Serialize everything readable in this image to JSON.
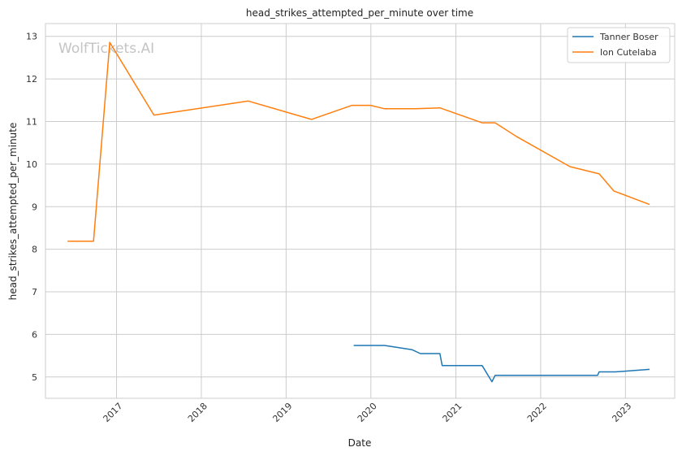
{
  "chart_data": {
    "type": "line",
    "title": "head_strikes_attempted_per_minute over time",
    "xlabel": "Date",
    "ylabel": "head_strikes_attempted_per_minute",
    "watermark": "WolfTickets.AI",
    "xlim": [
      "2016-03-01",
      "2023-08-01"
    ],
    "ylim": [
      4.5,
      13.3
    ],
    "x_ticks": [
      "2017",
      "2018",
      "2019",
      "2020",
      "2021",
      "2022",
      "2023"
    ],
    "y_ticks": [
      5,
      6,
      7,
      8,
      9,
      10,
      11,
      12,
      13
    ],
    "grid": true,
    "legend_position": "top-right",
    "series": [
      {
        "name": "Tanner Boser",
        "color": "#1f77b4",
        "points": [
          {
            "x": "2019-10-19",
            "y": 5.74
          },
          {
            "x": "2020-02-29",
            "y": 5.74
          },
          {
            "x": "2020-06-27",
            "y": 5.64
          },
          {
            "x": "2020-08-01",
            "y": 5.55
          },
          {
            "x": "2020-10-24",
            "y": 5.55
          },
          {
            "x": "2020-11-03",
            "y": 5.27
          },
          {
            "x": "2021-04-24",
            "y": 5.27
          },
          {
            "x": "2021-06-05",
            "y": 4.89
          },
          {
            "x": "2021-06-19",
            "y": 5.04
          },
          {
            "x": "2022-09-03",
            "y": 5.04
          },
          {
            "x": "2022-09-10",
            "y": 5.12
          },
          {
            "x": "2022-11-19",
            "y": 5.12
          },
          {
            "x": "2023-04-15",
            "y": 5.18
          }
        ]
      },
      {
        "name": "Ion Cutelaba",
        "color": "#ff7f0e",
        "points": [
          {
            "x": "2016-06-04",
            "y": 8.19
          },
          {
            "x": "2016-09-24",
            "y": 8.19
          },
          {
            "x": "2016-12-03",
            "y": 12.86
          },
          {
            "x": "2017-06-11",
            "y": 11.15
          },
          {
            "x": "2018-07-22",
            "y": 11.48
          },
          {
            "x": "2019-04-20",
            "y": 11.05
          },
          {
            "x": "2019-10-12",
            "y": 11.38
          },
          {
            "x": "2019-12-31",
            "y": 11.38
          },
          {
            "x": "2020-02-29",
            "y": 11.3
          },
          {
            "x": "2020-07-11",
            "y": 11.3
          },
          {
            "x": "2020-10-24",
            "y": 11.32
          },
          {
            "x": "2021-04-24",
            "y": 10.97
          },
          {
            "x": "2021-06-19",
            "y": 10.97
          },
          {
            "x": "2021-09-18",
            "y": 10.65
          },
          {
            "x": "2022-05-07",
            "y": 9.94
          },
          {
            "x": "2022-09-10",
            "y": 9.77
          },
          {
            "x": "2022-11-12",
            "y": 9.37
          },
          {
            "x": "2023-04-15",
            "y": 9.05
          }
        ]
      }
    ]
  }
}
